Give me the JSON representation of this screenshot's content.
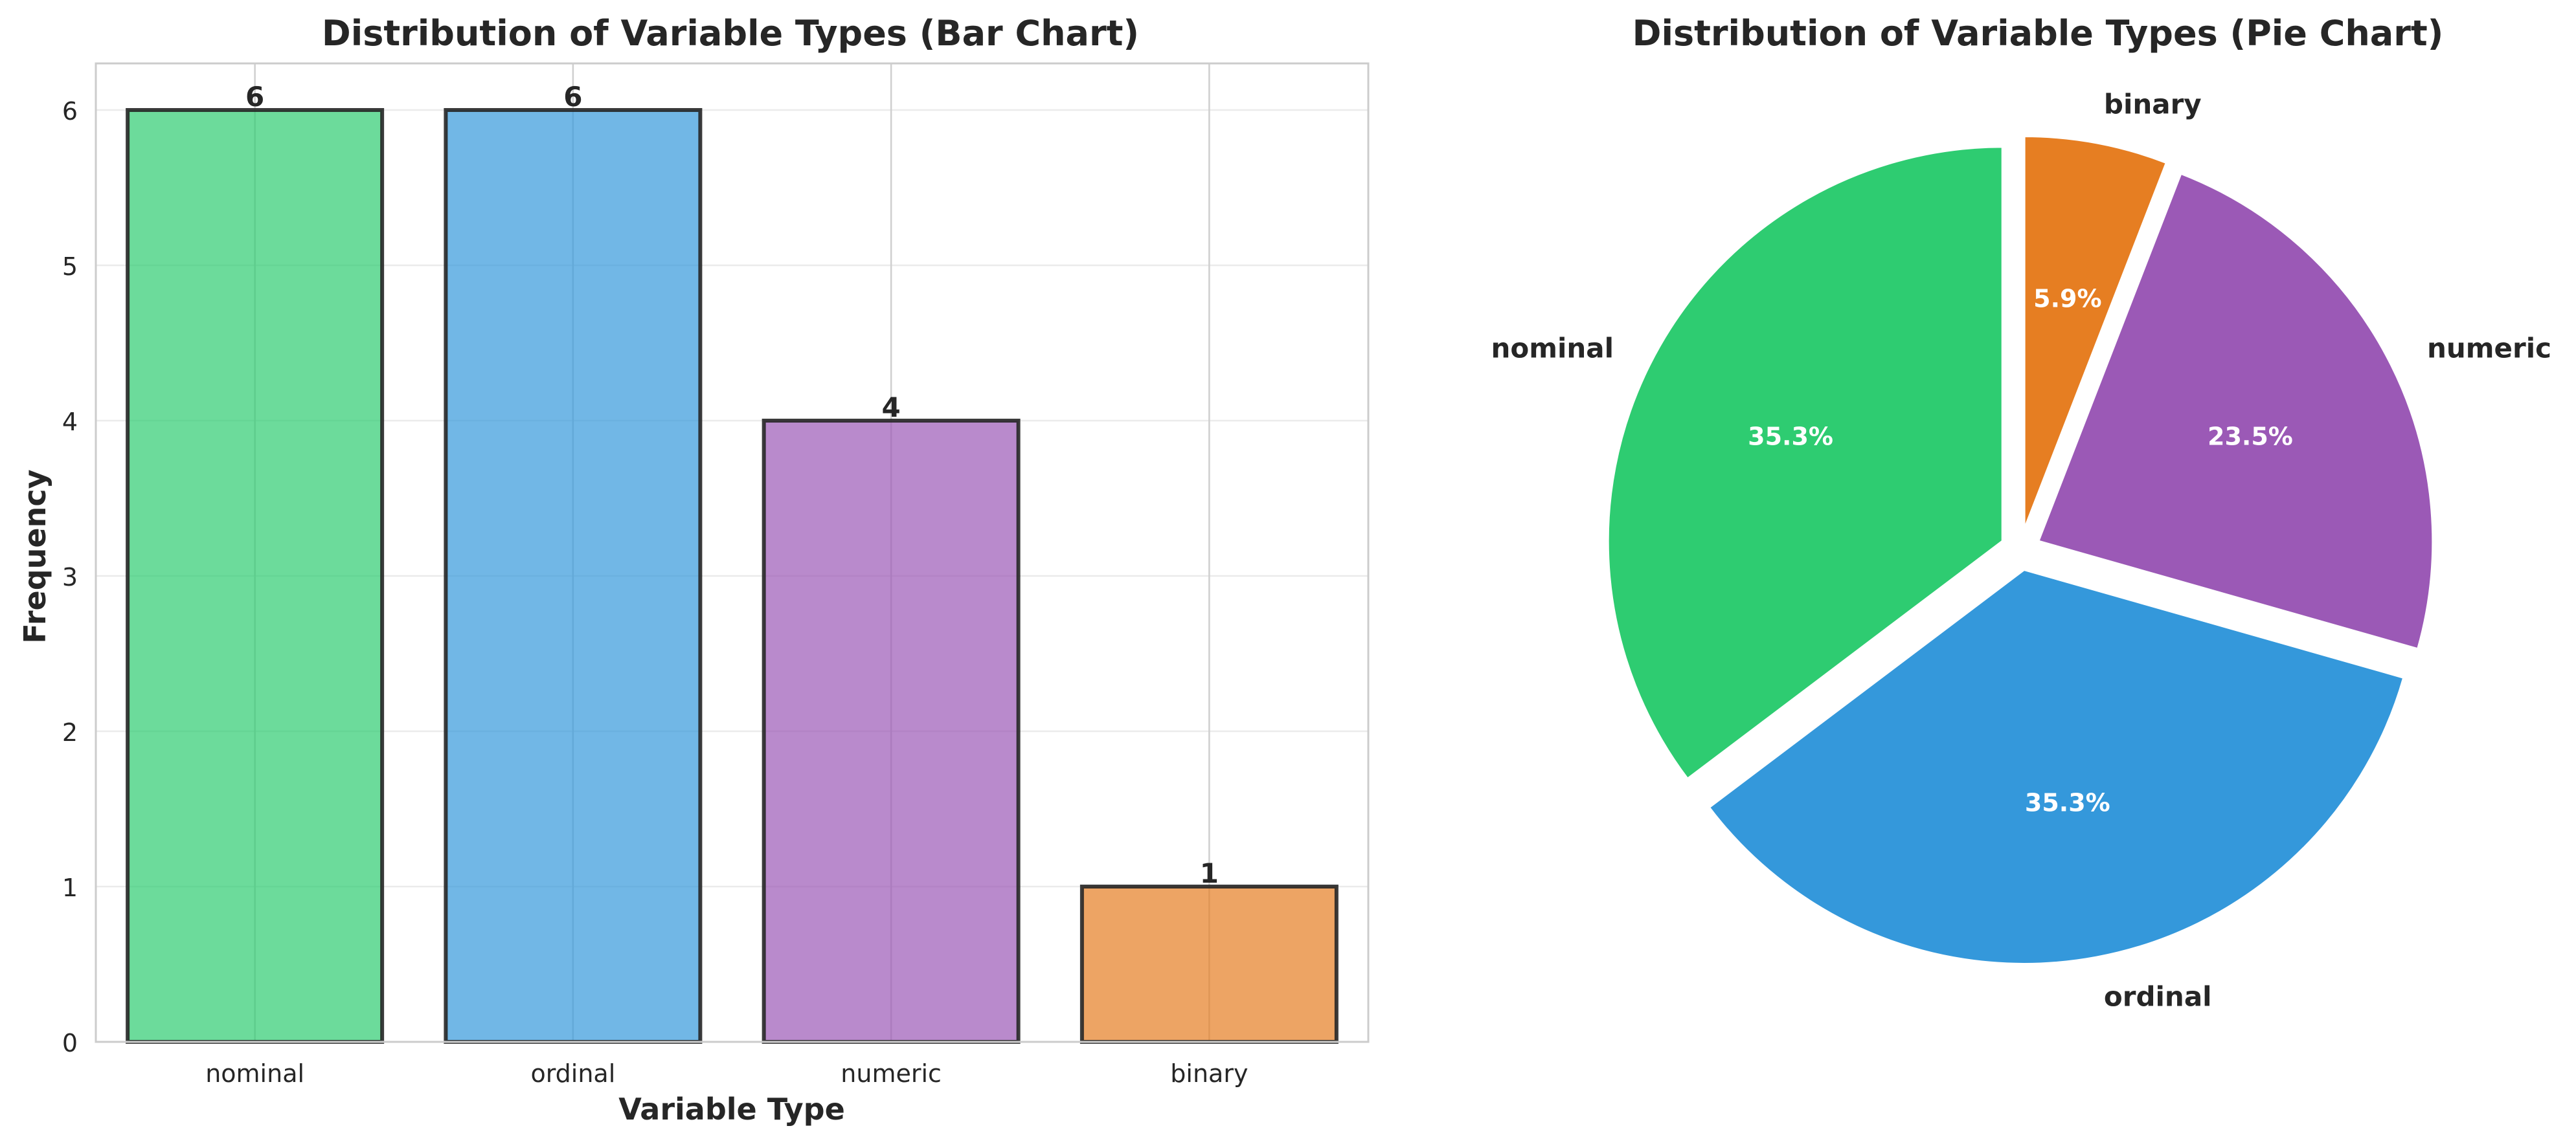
{
  "chart_data": [
    {
      "type": "bar",
      "title": "Distribution of Variable Types (Bar Chart)",
      "xlabel": "Variable Type",
      "ylabel": "Frequency",
      "categories": [
        "nominal",
        "ordinal",
        "numeric",
        "binary"
      ],
      "values": [
        6,
        6,
        4,
        1
      ],
      "value_labels": [
        "6",
        "6",
        "4",
        "1"
      ],
      "colors": [
        "#2ecc71",
        "#3498db",
        "#9b59b6",
        "#e67e22"
      ],
      "ylim": [
        0,
        6.3
      ],
      "yticks": [
        0,
        1,
        2,
        3,
        4,
        5,
        6
      ],
      "grid": true,
      "legend": "none"
    },
    {
      "type": "pie",
      "title": "Distribution of Variable Types (Pie Chart)",
      "labels": [
        "nominal",
        "ordinal",
        "numeric",
        "binary"
      ],
      "values": [
        6,
        6,
        4,
        1
      ],
      "percent_labels": [
        "35.3%",
        "35.3%",
        "23.5%",
        "5.9%"
      ],
      "colors": [
        "#2ecc71",
        "#3498db",
        "#9b59b6",
        "#e67e22"
      ],
      "start_angle_deg": 90,
      "direction": "counterclockwise",
      "exploded": true,
      "legend": "none"
    }
  ]
}
